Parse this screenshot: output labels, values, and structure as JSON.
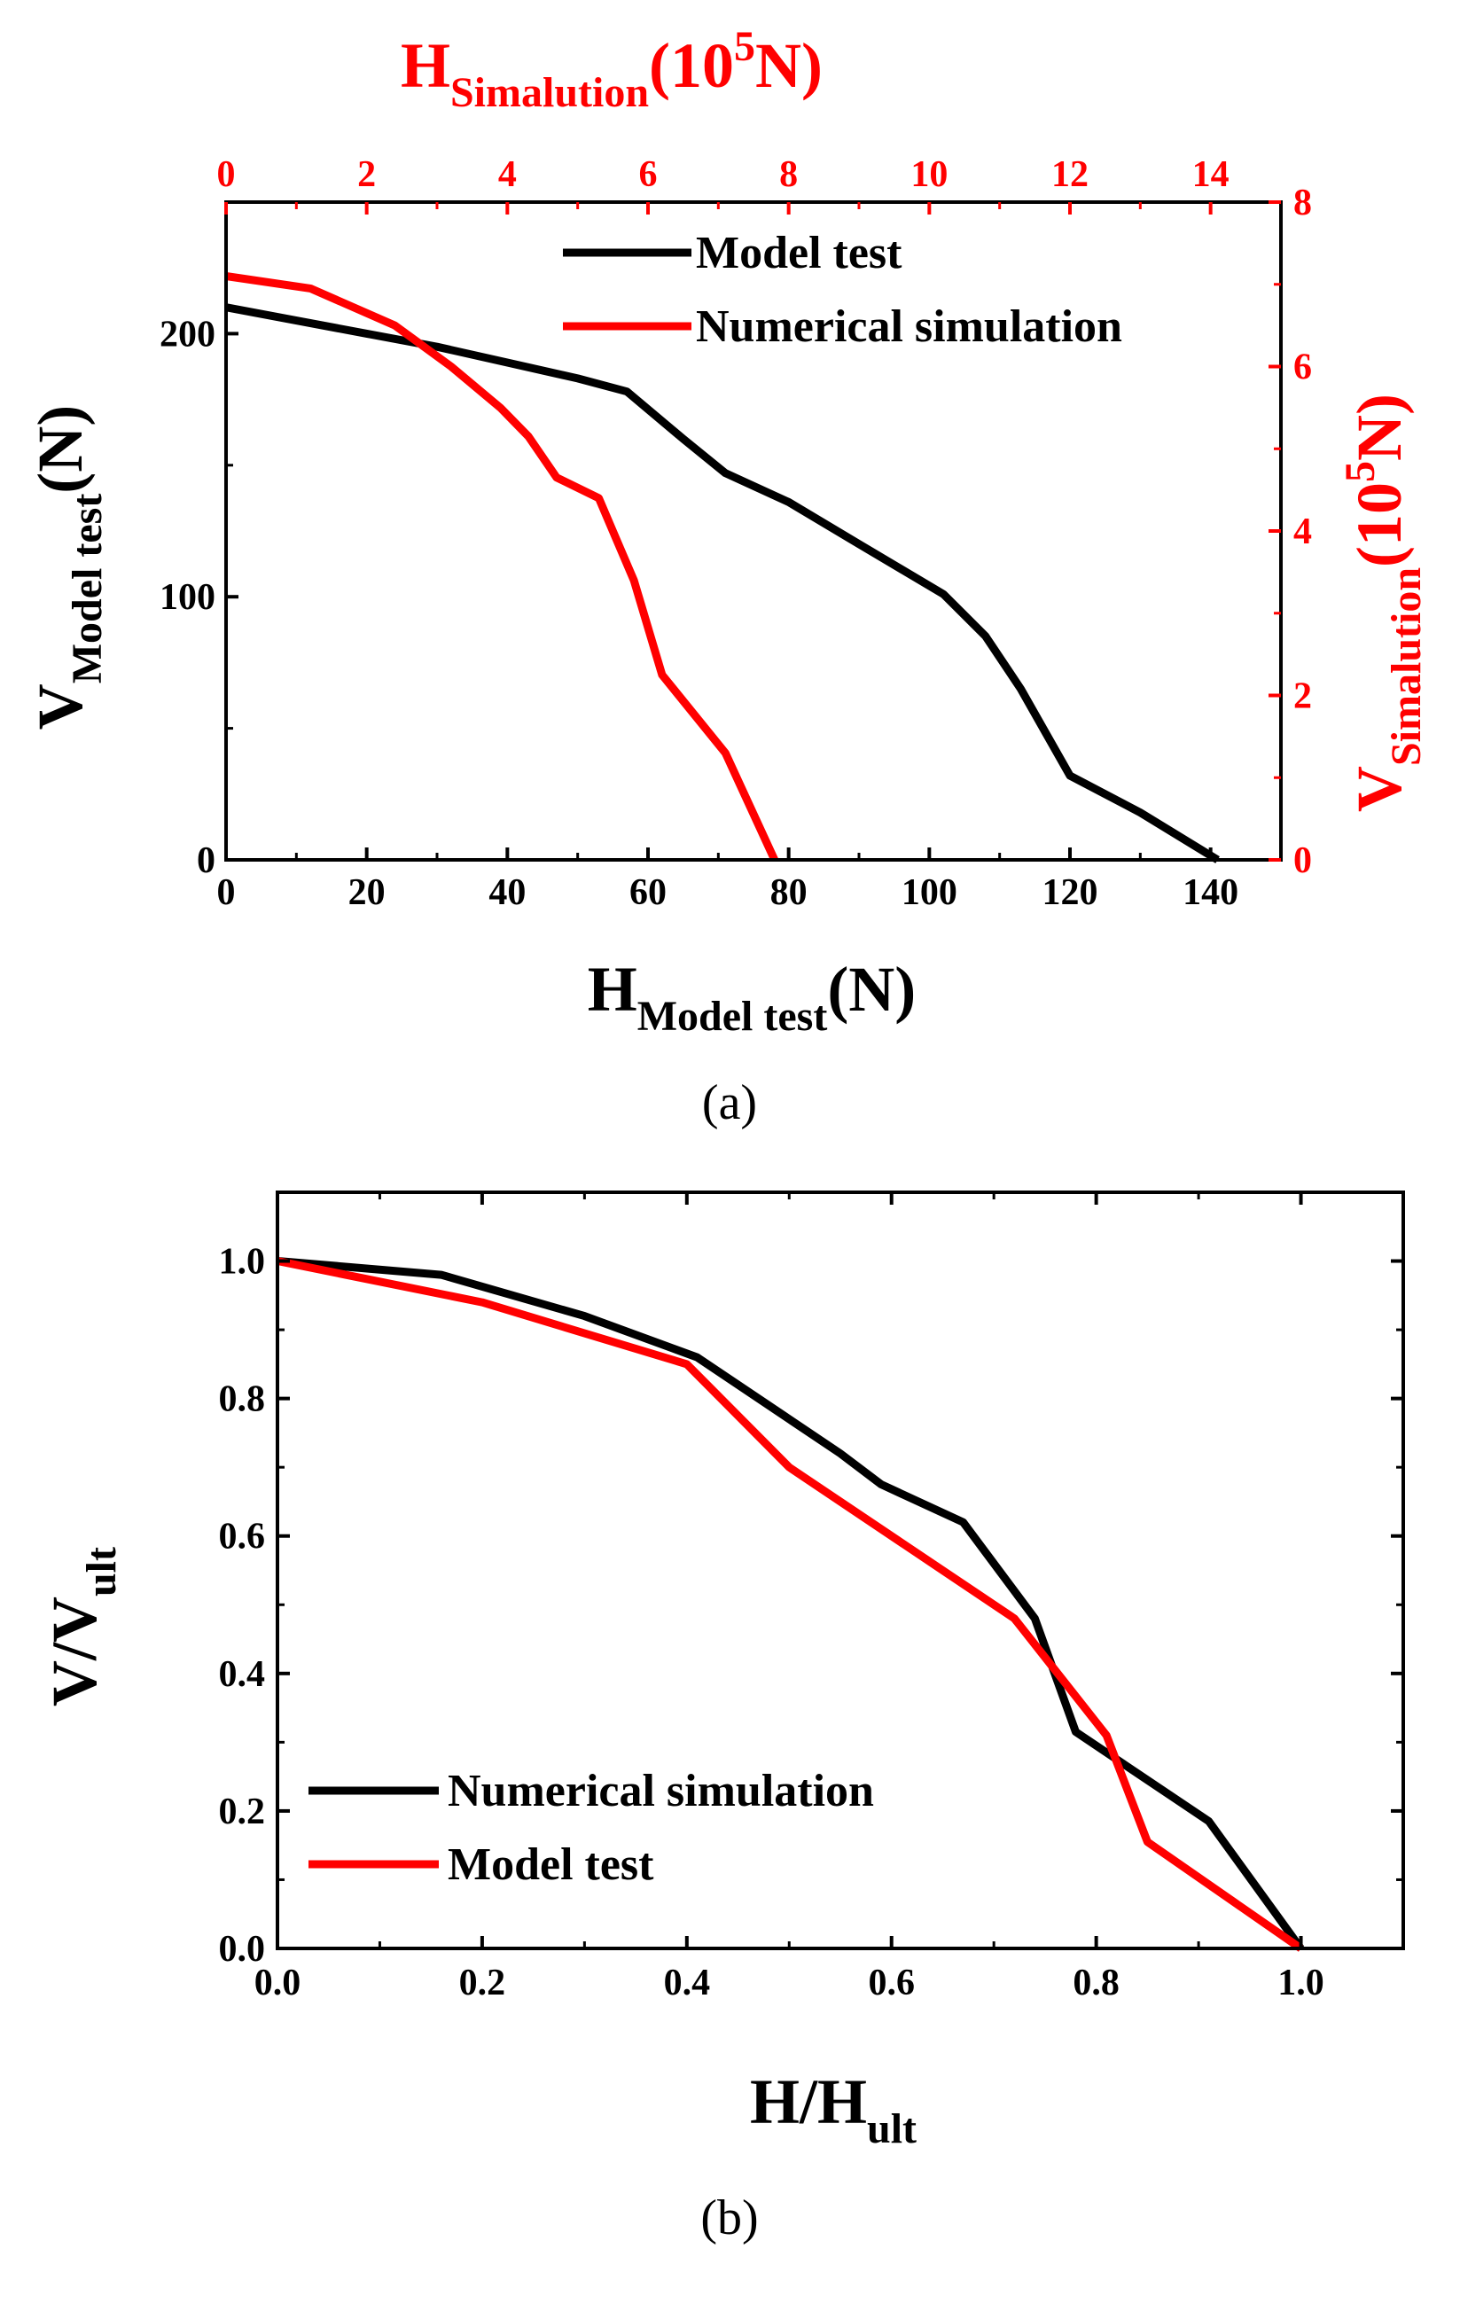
{
  "colors": {
    "black": "#000000",
    "red": "#ff0000"
  },
  "chart_data": [
    {
      "panel_label": "(a)",
      "type": "line",
      "bottom_axis": {
        "base": "H",
        "sub": "Model test",
        "unit": "(N)",
        "lim": [
          0,
          150
        ],
        "ticks": [
          0,
          20,
          40,
          60,
          80,
          100,
          120,
          140
        ]
      },
      "left_axis": {
        "base": "V",
        "sub": "Model test",
        "unit": "(N)",
        "lim": [
          0,
          250
        ],
        "ticks": [
          0,
          100,
          200
        ]
      },
      "top_axis": {
        "base": "H",
        "sub": "Simalution",
        "unit_pre": "(10",
        "unit_sup": "5",
        "unit_post": "N)",
        "lim": [
          0,
          15
        ],
        "ticks": [
          0,
          2,
          4,
          6,
          8,
          10,
          12,
          14
        ]
      },
      "right_axis": {
        "base": "V",
        "sub": "Simalution",
        "unit_pre": "(10",
        "unit_sup": "5",
        "unit_post": "N)",
        "lim": [
          0,
          8
        ],
        "ticks": [
          0,
          2,
          4,
          6,
          8
        ]
      },
      "legend": {
        "position": "top-right"
      },
      "series": [
        {
          "name": "Model test",
          "color": "#000000",
          "axes": "bottom-left",
          "x": [
            0,
            10,
            20,
            30,
            40,
            50,
            57,
            65,
            71,
            80,
            90,
            102,
            108,
            113,
            120,
            130,
            141
          ],
          "y": [
            210,
            205,
            200,
            195,
            189,
            183,
            178,
            160,
            147,
            136,
            120,
            101,
            85,
            65,
            32,
            18,
            0
          ]
        },
        {
          "name": "Numerical simulation",
          "color": "#ff0000",
          "axes": "top-right",
          "x": [
            0,
            1.2,
            2.4,
            3.2,
            3.9,
            4.3,
            4.7,
            5.3,
            5.5,
            5.8,
            6.2,
            7.1,
            7.8
          ],
          "y": [
            7.1,
            6.95,
            6.5,
            6.0,
            5.5,
            5.15,
            4.65,
            4.4,
            4.0,
            3.4,
            2.25,
            1.3,
            0
          ]
        }
      ]
    },
    {
      "panel_label": "(b)",
      "type": "line",
      "xlabel_base": "H/H",
      "xlabel_sub": "ult",
      "ylabel_base": "V/V",
      "ylabel_sub": "ult",
      "xlim": [
        0,
        1.1
      ],
      "ylim": [
        0,
        1.1
      ],
      "xticks": [
        "0.0",
        "0.2",
        "0.4",
        "0.6",
        "0.8",
        "1.0"
      ],
      "yticks": [
        "0.0",
        "0.2",
        "0.4",
        "0.6",
        "0.8",
        "1.0"
      ],
      "legend": {
        "position": "bottom-left"
      },
      "series": [
        {
          "name": "Numerical simulation",
          "color": "#000000",
          "x": [
            0,
            0.16,
            0.3,
            0.41,
            0.55,
            0.59,
            0.67,
            0.74,
            0.78,
            0.91,
            1.0
          ],
          "y": [
            1.0,
            0.98,
            0.92,
            0.86,
            0.72,
            0.675,
            0.62,
            0.48,
            0.315,
            0.185,
            0.0
          ]
        },
        {
          "name": "Model test",
          "color": "#ff0000",
          "x": [
            0,
            0.2,
            0.4,
            0.5,
            0.72,
            0.81,
            0.85,
            1.0
          ],
          "y": [
            1.0,
            0.94,
            0.85,
            0.7,
            0.48,
            0.31,
            0.155,
            0.0
          ]
        }
      ]
    }
  ]
}
